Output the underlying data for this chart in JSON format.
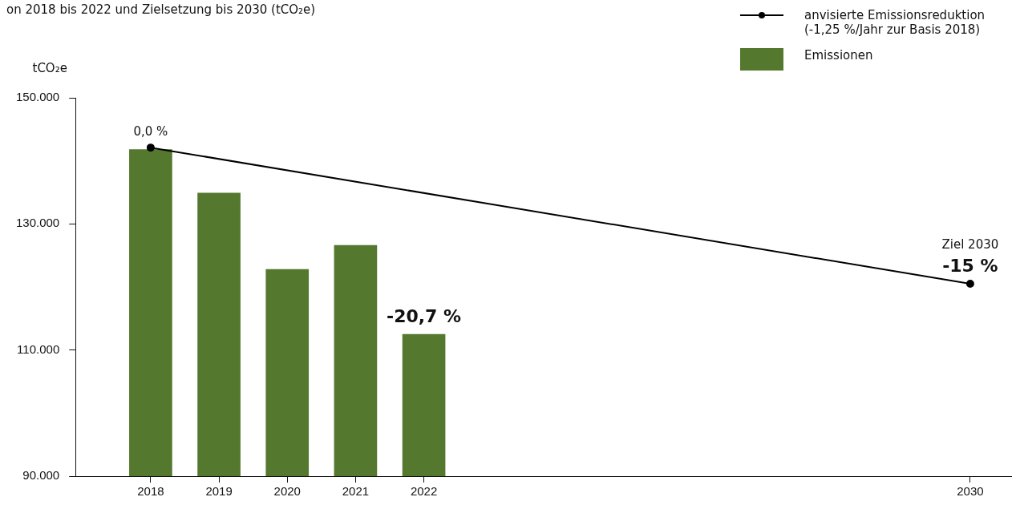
{
  "chart_data": {
    "type": "bar",
    "title": "on 2018 bis 2022 und Zielsetzung bis 2030 (tCO₂e)",
    "ylabel": "tCO₂e",
    "xlim": [
      2016.9,
      2030.6
    ],
    "xticks": [
      2018,
      2019,
      2020,
      2021,
      2022,
      2030
    ],
    "ylim": [
      90000,
      150000
    ],
    "yticks": [
      {
        "value": 90000,
        "label": "90.000"
      },
      {
        "value": 110000,
        "label": "110.000"
      },
      {
        "value": 130000,
        "label": "130.000"
      },
      {
        "value": 150000,
        "label": "150.000"
      }
    ],
    "series": [
      {
        "name": "anvisierte Emissionsreduktion (-1,25 %/Jahr zur Basis 2018)",
        "type": "line",
        "color": "#000000",
        "x": [
          2018,
          2030
        ],
        "values": [
          142100,
          120500
        ],
        "marker": "circle",
        "line_style": "solid"
      },
      {
        "name": "Emissionen",
        "color": "#55782f",
        "x": [
          2018,
          2019,
          2020,
          2021,
          2022
        ],
        "values": [
          141800,
          134900,
          122800,
          126600,
          112500
        ]
      }
    ],
    "annotations": [
      {
        "text": "0,0 %",
        "x": 2018,
        "y": 142100
      },
      {
        "text": "-20,7 %",
        "x": 2022,
        "y": 112500
      },
      "Ziel 2030",
      {
        "text": "-15 %",
        "x": 2030,
        "y": 120500
      }
    ],
    "grid": false,
    "legend": "top right"
  }
}
